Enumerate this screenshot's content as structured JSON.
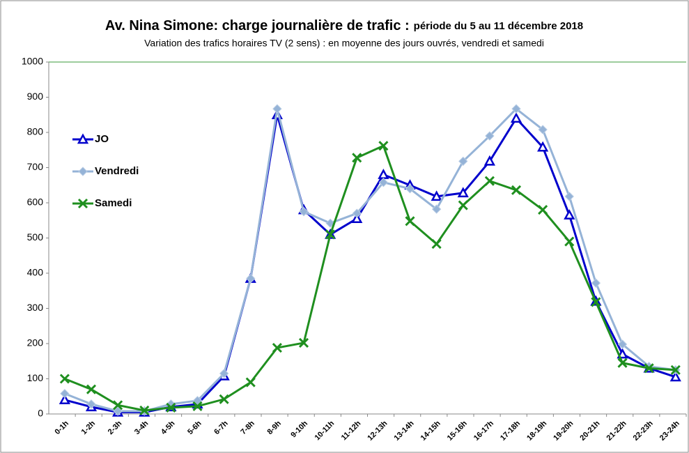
{
  "chart_data": {
    "type": "line",
    "title": "Av. Nina Simone: charge journalière de trafic :",
    "title_detail": "période du 5 au 11 décembre 2018",
    "subtitle": "Variation des trafics horaires TV (2 sens) : en moyenne des jours ouvrés, vendredi et samedi",
    "categories": [
      "0-1h",
      "1-2h",
      "2-3h",
      "3-4h",
      "4-5h",
      "5-6h",
      "6-7h",
      "7-8h",
      "8-9h",
      "9-10h",
      "10-11h",
      "11-12h",
      "12-13h",
      "13-14h",
      "14-15h",
      "15-16h",
      "16-17h",
      "17-18h",
      "18-19h",
      "19-20h",
      "20-21h",
      "21-22h",
      "22-23h",
      "23-24h"
    ],
    "series": [
      {
        "name": "JO",
        "color": "#0000cc",
        "marker": "triangle",
        "values": [
          40,
          20,
          5,
          5,
          20,
          28,
          108,
          385,
          850,
          580,
          510,
          555,
          680,
          650,
          618,
          628,
          718,
          840,
          758,
          565,
          320,
          170,
          130,
          105
        ]
      },
      {
        "name": "Vendredi",
        "color": "#95b3d7",
        "marker": "diamond",
        "values": [
          58,
          28,
          8,
          8,
          28,
          38,
          115,
          385,
          867,
          575,
          542,
          570,
          658,
          640,
          582,
          718,
          790,
          867,
          808,
          618,
          372,
          198,
          135,
          125
        ]
      },
      {
        "name": "Samedi",
        "color": "#1f8f1f",
        "marker": "x",
        "values": [
          100,
          70,
          25,
          10,
          18,
          22,
          42,
          90,
          188,
          202,
          510,
          728,
          762,
          548,
          483,
          593,
          662,
          636,
          580,
          490,
          318,
          145,
          130,
          125
        ]
      }
    ],
    "ylim": [
      0,
      1000
    ],
    "yticks": [
      0,
      100,
      200,
      300,
      400,
      500,
      600,
      700,
      800,
      900,
      1000
    ],
    "grid": false
  }
}
